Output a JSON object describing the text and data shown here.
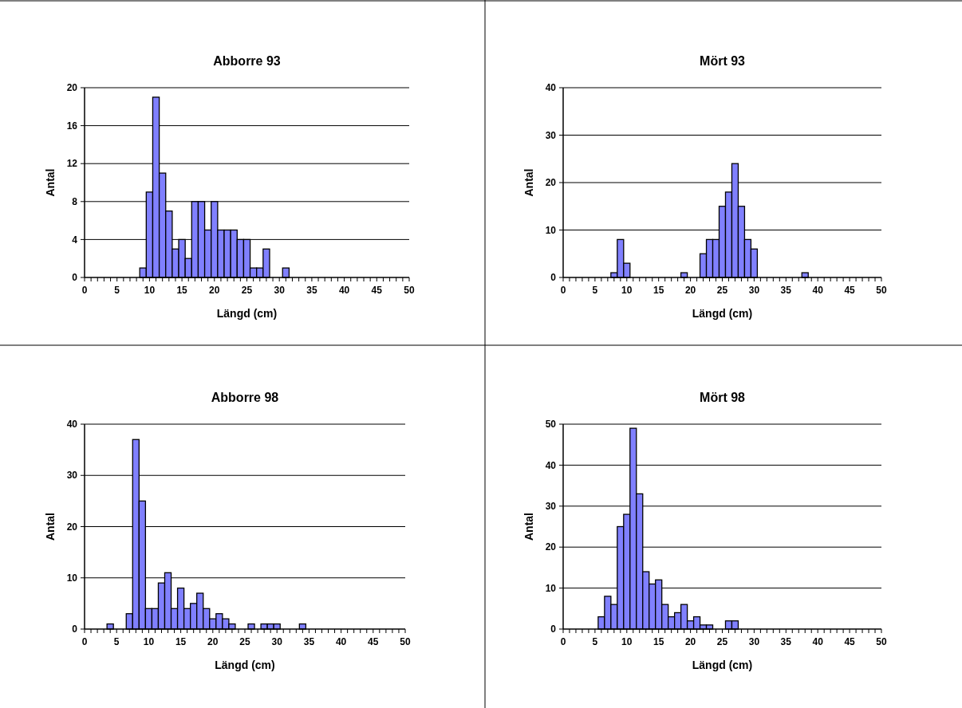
{
  "chart_data": [
    {
      "type": "bar",
      "title": "Abborre 93",
      "xlabel": "Längd (cm)",
      "ylabel": "Antal",
      "color": "#8080ff",
      "grid": "y",
      "xlim": [
        0,
        50
      ],
      "ylim": [
        0,
        20
      ],
      "yticks": [
        0,
        4,
        8,
        12,
        16,
        20
      ],
      "xticks": [
        0,
        {
          "value": 1,
          "label": null
        },
        {
          "value": 2,
          "label": null
        },
        {
          "value": 3,
          "label": null
        },
        {
          "value": 4,
          "label": null
        },
        5,
        {
          "value": 6,
          "label": null
        },
        {
          "value": 7,
          "label": null
        },
        {
          "value": 8,
          "label": null
        },
        {
          "value": 9,
          "label": null
        },
        10,
        {
          "value": 11,
          "label": null
        },
        {
          "value": 12,
          "label": null
        },
        {
          "value": 13,
          "label": null
        },
        {
          "value": 14,
          "label": null
        },
        15,
        {
          "value": 16,
          "label": null
        },
        {
          "value": 17,
          "label": null
        },
        {
          "value": 18,
          "label": null
        },
        {
          "value": 19,
          "label": null
        },
        20,
        {
          "value": 21,
          "label": null
        },
        {
          "value": 22,
          "label": null
        },
        {
          "value": 23,
          "label": null
        },
        {
          "value": 24,
          "label": null
        },
        25,
        {
          "value": 26,
          "label": null
        },
        {
          "value": 27,
          "label": null
        },
        {
          "value": 28,
          "label": null
        },
        {
          "value": 29,
          "label": null
        },
        30,
        {
          "value": 31,
          "label": null
        },
        {
          "value": 32,
          "label": null
        },
        {
          "value": 33,
          "label": null
        },
        {
          "value": 34,
          "label": null
        },
        35,
        {
          "value": 36,
          "label": null
        },
        {
          "value": 37,
          "label": null
        },
        {
          "value": 38,
          "label": null
        },
        {
          "value": 39,
          "label": null
        },
        40,
        {
          "value": 41,
          "label": null
        },
        {
          "value": 42,
          "label": null
        },
        {
          "value": 43,
          "label": null
        },
        {
          "value": 44,
          "label": null
        },
        45,
        {
          "value": 46,
          "label": null
        },
        {
          "value": 47,
          "label": null
        },
        {
          "value": 48,
          "label": null
        },
        {
          "value": 49,
          "label": null
        },
        50
      ],
      "x": [
        9,
        10,
        11,
        12,
        13,
        14,
        15,
        16,
        17,
        18,
        19,
        20,
        21,
        22,
        23,
        24,
        25,
        26,
        27,
        28,
        31
      ],
      "values": [
        1,
        9,
        19,
        11,
        7,
        3,
        4,
        2,
        8,
        8,
        5,
        8,
        5,
        5,
        5,
        4,
        4,
        1,
        1,
        3,
        1
      ]
    },
    {
      "type": "bar",
      "title": "Mört 93",
      "xlabel": "Längd (cm)",
      "ylabel": "Antal",
      "color": "#8080ff",
      "grid": "y",
      "xlim": [
        0,
        50
      ],
      "ylim": [
        0,
        40
      ],
      "yticks": [
        0,
        10,
        20,
        30,
        40
      ],
      "xticks": [
        0,
        {
          "value": 1,
          "label": null
        },
        {
          "value": 2,
          "label": null
        },
        {
          "value": 3,
          "label": null
        },
        {
          "value": 4,
          "label": null
        },
        5,
        {
          "value": 6,
          "label": null
        },
        {
          "value": 7,
          "label": null
        },
        {
          "value": 8,
          "label": null
        },
        {
          "value": 9,
          "label": null
        },
        10,
        {
          "value": 11,
          "label": null
        },
        {
          "value": 12,
          "label": null
        },
        {
          "value": 13,
          "label": null
        },
        {
          "value": 14,
          "label": null
        },
        15,
        {
          "value": 16,
          "label": null
        },
        {
          "value": 17,
          "label": null
        },
        {
          "value": 18,
          "label": null
        },
        {
          "value": 19,
          "label": null
        },
        20,
        {
          "value": 21,
          "label": null
        },
        {
          "value": 22,
          "label": null
        },
        {
          "value": 23,
          "label": null
        },
        {
          "value": 24,
          "label": null
        },
        25,
        {
          "value": 26,
          "label": null
        },
        {
          "value": 27,
          "label": null
        },
        {
          "value": 28,
          "label": null
        },
        {
          "value": 29,
          "label": null
        },
        30,
        {
          "value": 31,
          "label": null
        },
        {
          "value": 32,
          "label": null
        },
        {
          "value": 33,
          "label": null
        },
        {
          "value": 34,
          "label": null
        },
        35,
        {
          "value": 36,
          "label": null
        },
        {
          "value": 37,
          "label": null
        },
        {
          "value": 38,
          "label": null
        },
        {
          "value": 39,
          "label": null
        },
        40,
        {
          "value": 41,
          "label": null
        },
        {
          "value": 42,
          "label": null
        },
        {
          "value": 43,
          "label": null
        },
        {
          "value": 44,
          "label": null
        },
        45,
        {
          "value": 46,
          "label": null
        },
        {
          "value": 47,
          "label": null
        },
        {
          "value": 48,
          "label": null
        },
        {
          "value": 49,
          "label": null
        },
        50
      ],
      "x": [
        8,
        9,
        10,
        19,
        22,
        23,
        24,
        25,
        26,
        27,
        28,
        29,
        30,
        38
      ],
      "values": [
        1,
        8,
        3,
        1,
        5,
        8,
        8,
        15,
        18,
        24,
        15,
        8,
        6,
        1
      ]
    },
    {
      "type": "bar",
      "title": "Abborre 98",
      "xlabel": "Längd (cm)",
      "ylabel": "Antal",
      "color": "#8080ff",
      "grid": "y",
      "xlim": [
        0,
        50
      ],
      "ylim": [
        0,
        40
      ],
      "yticks": [
        0,
        10,
        20,
        30,
        40
      ],
      "xticks": [
        0,
        {
          "value": 1,
          "label": null
        },
        {
          "value": 2,
          "label": null
        },
        {
          "value": 3,
          "label": null
        },
        {
          "value": 4,
          "label": null
        },
        5,
        {
          "value": 6,
          "label": null
        },
        {
          "value": 7,
          "label": null
        },
        {
          "value": 8,
          "label": null
        },
        {
          "value": 9,
          "label": null
        },
        10,
        {
          "value": 11,
          "label": null
        },
        {
          "value": 12,
          "label": null
        },
        {
          "value": 13,
          "label": null
        },
        {
          "value": 14,
          "label": null
        },
        15,
        {
          "value": 16,
          "label": null
        },
        {
          "value": 17,
          "label": null
        },
        {
          "value": 18,
          "label": null
        },
        {
          "value": 19,
          "label": null
        },
        20,
        {
          "value": 21,
          "label": null
        },
        {
          "value": 22,
          "label": null
        },
        {
          "value": 23,
          "label": null
        },
        {
          "value": 24,
          "label": null
        },
        25,
        {
          "value": 26,
          "label": null
        },
        {
          "value": 27,
          "label": null
        },
        {
          "value": 28,
          "label": null
        },
        {
          "value": 29,
          "label": null
        },
        30,
        {
          "value": 31,
          "label": null
        },
        {
          "value": 32,
          "label": null
        },
        {
          "value": 33,
          "label": null
        },
        {
          "value": 34,
          "label": null
        },
        35,
        {
          "value": 36,
          "label": null
        },
        {
          "value": 37,
          "label": null
        },
        {
          "value": 38,
          "label": null
        },
        {
          "value": 39,
          "label": null
        },
        40,
        {
          "value": 41,
          "label": null
        },
        {
          "value": 42,
          "label": null
        },
        {
          "value": 43,
          "label": null
        },
        {
          "value": 44,
          "label": null
        },
        45,
        {
          "value": 46,
          "label": null
        },
        {
          "value": 47,
          "label": null
        },
        {
          "value": 48,
          "label": null
        },
        {
          "value": 49,
          "label": null
        },
        50
      ],
      "x": [
        4,
        7,
        8,
        9,
        10,
        11,
        12,
        13,
        14,
        15,
        16,
        17,
        18,
        19,
        20,
        21,
        22,
        23,
        26,
        28,
        29,
        30,
        34
      ],
      "values": [
        1,
        3,
        37,
        25,
        4,
        4,
        9,
        11,
        4,
        8,
        4,
        5,
        7,
        4,
        2,
        3,
        2,
        1,
        1,
        1,
        1,
        1,
        1
      ]
    },
    {
      "type": "bar",
      "title": "Mört 98",
      "xlabel": "Längd (cm)",
      "ylabel": "Antal",
      "color": "#8080ff",
      "grid": "y",
      "xlim": [
        0,
        50
      ],
      "ylim": [
        0,
        50
      ],
      "yticks": [
        0,
        10,
        20,
        30,
        40,
        50
      ],
      "xticks": [
        0,
        {
          "value": 1,
          "label": null
        },
        {
          "value": 2,
          "label": null
        },
        {
          "value": 3,
          "label": null
        },
        {
          "value": 4,
          "label": null
        },
        5,
        {
          "value": 6,
          "label": null
        },
        {
          "value": 7,
          "label": null
        },
        {
          "value": 8,
          "label": null
        },
        {
          "value": 9,
          "label": null
        },
        10,
        {
          "value": 11,
          "label": null
        },
        {
          "value": 12,
          "label": null
        },
        {
          "value": 13,
          "label": null
        },
        {
          "value": 14,
          "label": null
        },
        15,
        {
          "value": 16,
          "label": null
        },
        {
          "value": 17,
          "label": null
        },
        {
          "value": 18,
          "label": null
        },
        {
          "value": 19,
          "label": null
        },
        20,
        {
          "value": 21,
          "label": null
        },
        {
          "value": 22,
          "label": null
        },
        {
          "value": 23,
          "label": null
        },
        {
          "value": 24,
          "label": null
        },
        25,
        {
          "value": 26,
          "label": null
        },
        {
          "value": 27,
          "label": null
        },
        {
          "value": 28,
          "label": null
        },
        {
          "value": 29,
          "label": null
        },
        30,
        {
          "value": 31,
          "label": null
        },
        {
          "value": 32,
          "label": null
        },
        {
          "value": 33,
          "label": null
        },
        {
          "value": 34,
          "label": null
        },
        35,
        {
          "value": 36,
          "label": null
        },
        {
          "value": 37,
          "label": null
        },
        {
          "value": 38,
          "label": null
        },
        {
          "value": 39,
          "label": null
        },
        40,
        {
          "value": 41,
          "label": null
        },
        {
          "value": 42,
          "label": null
        },
        {
          "value": 43,
          "label": null
        },
        {
          "value": 44,
          "label": null
        },
        45,
        {
          "value": 46,
          "label": null
        },
        {
          "value": 47,
          "label": null
        },
        {
          "value": 48,
          "label": null
        },
        {
          "value": 49,
          "label": null
        },
        50
      ],
      "x": [
        6,
        7,
        8,
        9,
        10,
        11,
        12,
        13,
        14,
        15,
        16,
        17,
        18,
        19,
        20,
        21,
        22,
        23,
        26,
        27
      ],
      "values": [
        3,
        8,
        6,
        25,
        28,
        49,
        33,
        14,
        11,
        12,
        6,
        3,
        4,
        6,
        2,
        3,
        1,
        1,
        2,
        2
      ]
    }
  ]
}
